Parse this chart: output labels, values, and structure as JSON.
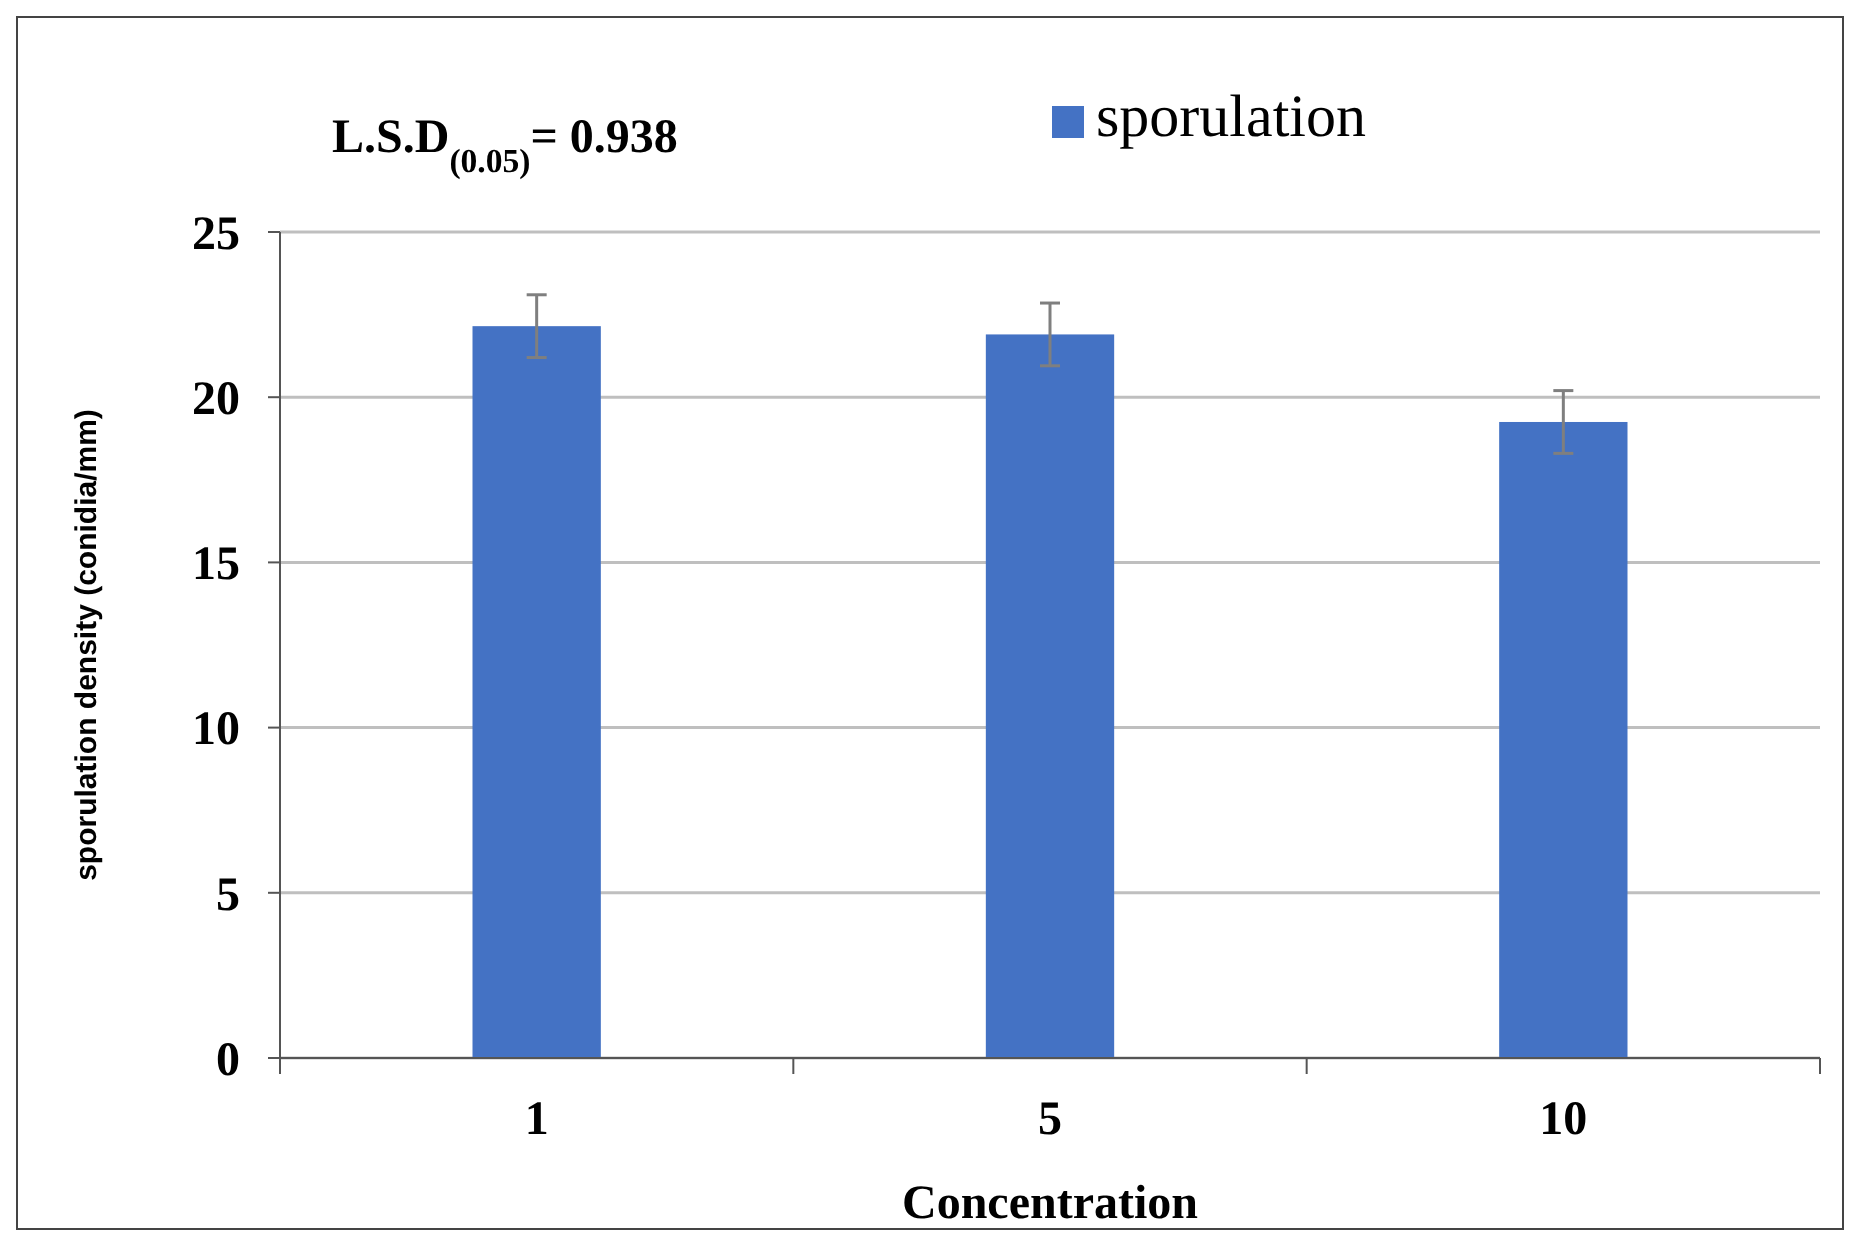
{
  "chart_data": {
    "type": "bar",
    "categories": [
      "1",
      "5",
      "10"
    ],
    "series": [
      {
        "name": "sporulation",
        "color": "#4472c4",
        "values": [
          22.15,
          21.9,
          19.25
        ],
        "errors": [
          0.95,
          0.95,
          0.95
        ]
      }
    ],
    "xlabel": "Concentration",
    "ylabel": "sporulation density (conidia/mm)",
    "ylim": [
      0,
      25
    ],
    "yticks": [
      0,
      5,
      10,
      15,
      20,
      25
    ],
    "grid": "y",
    "legend": "top",
    "annotations": [
      "L.S.D$_{(0.05)}$= 0.938"
    ]
  }
}
